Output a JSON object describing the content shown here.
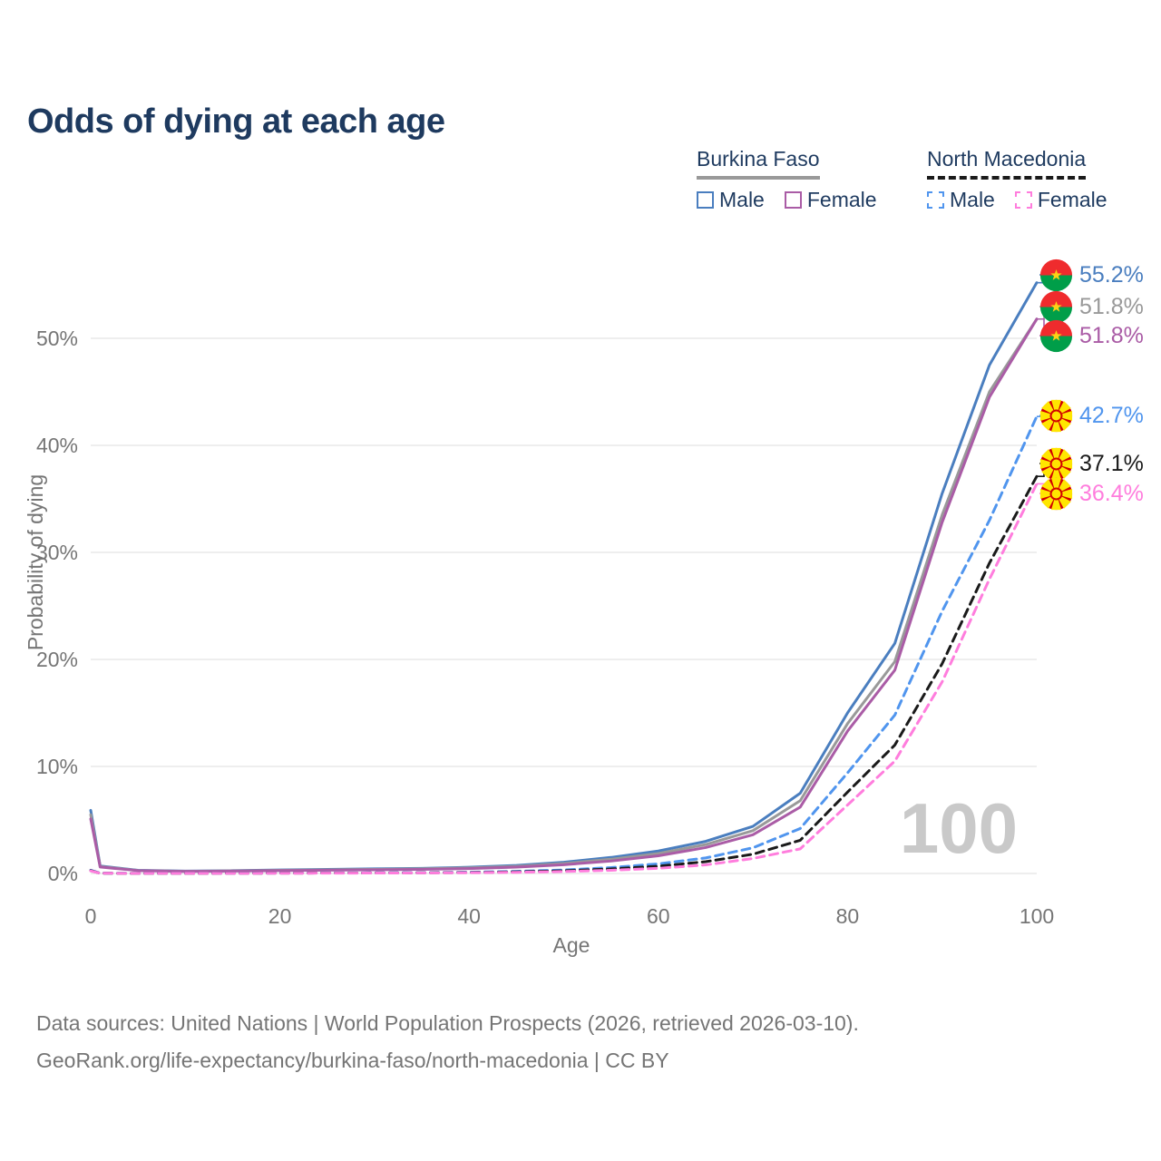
{
  "title": "Odds of dying at each age",
  "legend": {
    "groups": [
      {
        "name": "Burkina Faso",
        "line_style": "solid",
        "line_color": "#999999",
        "items": [
          {
            "label": "Male",
            "color": "#4a7ebf",
            "dash": false
          },
          {
            "label": "Female",
            "color": "#aa5ca6",
            "dash": false
          }
        ]
      },
      {
        "name": "North Macedonia",
        "line_style": "dashed",
        "line_color": "#1a1a1a",
        "items": [
          {
            "label": "Male",
            "color": "#5095ee",
            "dash": true
          },
          {
            "label": "Female",
            "color": "#ff7ddd",
            "dash": true
          }
        ]
      }
    ]
  },
  "chart_data": {
    "type": "line",
    "title": "Odds of dying at each age",
    "xlabel": "Age",
    "ylabel": "Probability of dying",
    "xlim": [
      0,
      100
    ],
    "ylim": [
      0,
      57
    ],
    "x_ticks": [
      0,
      20,
      40,
      60,
      80,
      100
    ],
    "y_ticks": [
      0,
      10,
      20,
      30,
      40,
      50
    ],
    "y_tick_suffix": "%",
    "grid": "horizontal",
    "legend_position": "top-right",
    "watermark": "100",
    "ages": [
      0,
      1,
      5,
      10,
      15,
      20,
      25,
      30,
      35,
      40,
      45,
      50,
      55,
      60,
      65,
      70,
      75,
      80,
      85,
      90,
      95,
      100
    ],
    "series": [
      {
        "name": "burkina-faso-male",
        "country": "Burkina Faso",
        "sex": "Male",
        "flag": "burkina-faso",
        "color": "#4a7ebf",
        "dash": false,
        "end_label": "55.2%",
        "values": [
          5.9,
          0.7,
          0.3,
          0.22,
          0.26,
          0.33,
          0.38,
          0.43,
          0.48,
          0.58,
          0.75,
          1.05,
          1.5,
          2.1,
          3.0,
          4.4,
          7.5,
          15.0,
          21.5,
          35.5,
          47.5,
          55.2
        ]
      },
      {
        "name": "burkina-faso-both-sexes",
        "country": "Burkina Faso",
        "sex": "Both",
        "flag": "burkina-faso",
        "color": "#999999",
        "dash": false,
        "end_label": "51.8%",
        "values": [
          5.5,
          0.65,
          0.28,
          0.2,
          0.24,
          0.3,
          0.34,
          0.38,
          0.43,
          0.52,
          0.67,
          0.93,
          1.33,
          1.87,
          2.7,
          4.0,
          6.8,
          14.0,
          19.8,
          33.5,
          45.0,
          51.8
        ]
      },
      {
        "name": "burkina-faso-female",
        "country": "Burkina Faso",
        "sex": "Female",
        "flag": "burkina-faso",
        "color": "#aa5ca6",
        "dash": false,
        "end_label": "51.8%",
        "values": [
          5.1,
          0.6,
          0.27,
          0.19,
          0.22,
          0.27,
          0.31,
          0.34,
          0.38,
          0.46,
          0.59,
          0.82,
          1.16,
          1.65,
          2.42,
          3.62,
          6.2,
          13.3,
          19.0,
          32.8,
          44.5,
          51.8
        ]
      },
      {
        "name": "north-macedonia-male",
        "country": "North Macedonia",
        "sex": "Male",
        "flag": "north-macedonia",
        "color": "#5095ee",
        "dash": true,
        "end_label": "42.7%",
        "values": [
          0.3,
          0.03,
          0.01,
          0.01,
          0.02,
          0.04,
          0.05,
          0.06,
          0.08,
          0.12,
          0.2,
          0.33,
          0.55,
          0.9,
          1.45,
          2.4,
          4.2,
          9.4,
          14.8,
          24.5,
          33.0,
          42.7
        ]
      },
      {
        "name": "north-macedonia-both-sexes",
        "country": "North Macedonia",
        "sex": "Both",
        "flag": "north-macedonia",
        "color": "#1a1a1a",
        "dash": true,
        "end_label": "37.1%",
        "values": [
          0.27,
          0.02,
          0.01,
          0.01,
          0.02,
          0.03,
          0.04,
          0.05,
          0.06,
          0.09,
          0.15,
          0.25,
          0.42,
          0.68,
          1.1,
          1.8,
          3.1,
          7.6,
          12.0,
          19.6,
          29.0,
          37.1
        ]
      },
      {
        "name": "north-macedonia-female",
        "country": "North Macedonia",
        "sex": "Female",
        "flag": "north-macedonia",
        "color": "#ff7ddd",
        "dash": true,
        "end_label": "36.4%",
        "values": [
          0.24,
          0.02,
          0.01,
          0.01,
          0.01,
          0.02,
          0.03,
          0.04,
          0.05,
          0.07,
          0.11,
          0.18,
          0.3,
          0.48,
          0.8,
          1.4,
          2.3,
          6.4,
          10.5,
          17.9,
          27.5,
          36.4
        ]
      }
    ]
  },
  "footer": {
    "line1": "Data sources: United Nations | World Population Prospects (2026, retrieved 2026-03-10).",
    "line2": "GeoRank.org/life-expectancy/burkina-faso/north-macedonia | CC BY"
  }
}
